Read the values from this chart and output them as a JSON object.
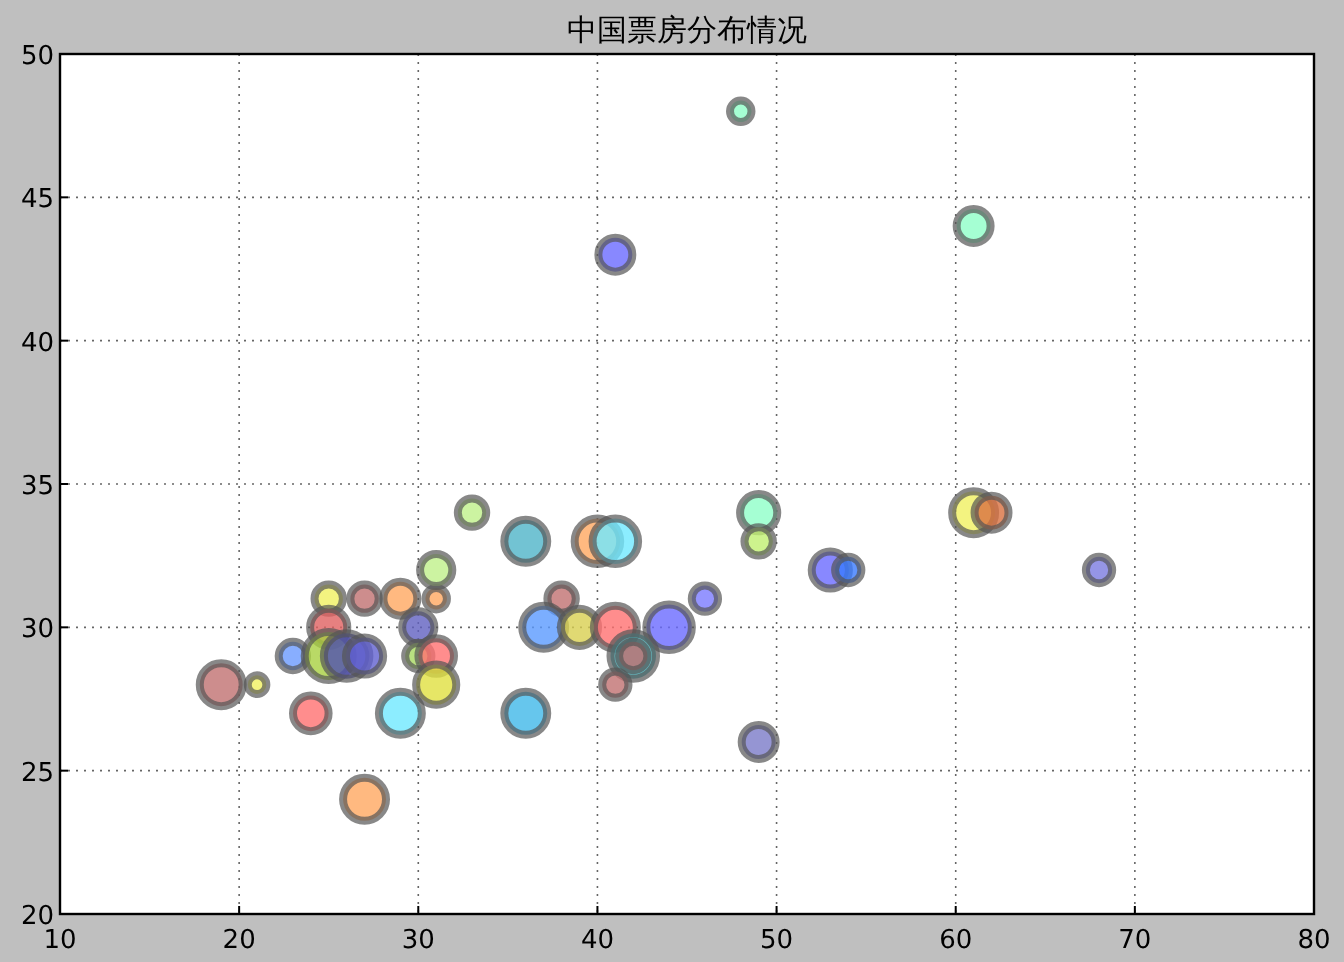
{
  "chart_data": {
    "type": "bubble",
    "title": "中国票房分布情况",
    "x": [
      48,
      61,
      41,
      33,
      36,
      40,
      41,
      49,
      49,
      53,
      54,
      61,
      62,
      68,
      25,
      27,
      29,
      31,
      31,
      38,
      46,
      37,
      39,
      41,
      44,
      42,
      42,
      41,
      23,
      19,
      21,
      25,
      25,
      26,
      27,
      30,
      30,
      31,
      31,
      24,
      29,
      36,
      27,
      49
    ],
    "values": [
      48,
      44,
      43,
      34,
      33,
      33,
      33,
      34,
      33,
      32,
      32,
      34,
      34,
      32,
      31,
      31,
      31,
      31,
      32,
      31,
      31,
      30,
      30,
      30,
      30,
      29,
      29,
      28,
      29,
      28,
      28,
      30,
      29,
      29,
      29,
      30,
      29,
      29,
      28,
      27,
      27,
      27,
      24,
      26
    ],
    "sizes": [
      0.2,
      0.5,
      0.5,
      0.35,
      0.8,
      0.9,
      0.9,
      0.6,
      0.35,
      0.6,
      0.3,
      0.8,
      0.5,
      0.3,
      0.35,
      0.35,
      0.5,
      0.2,
      0.45,
      0.35,
      0.3,
      0.8,
      0.6,
      0.8,
      0.9,
      0.9,
      0.35,
      0.3,
      0.35,
      0.8,
      0.15,
      0.6,
      1,
      0.9,
      0.6,
      0.45,
      0.3,
      0.55,
      0.7,
      0.55,
      0.8,
      0.8,
      0.8,
      0.5
    ],
    "colors": [
      "#8fffc8",
      "#8fffc8",
      "#6a6aff",
      "#bff08a",
      "#4fb4c8",
      "#ffa860",
      "#6fe8ff",
      "#8fffc8",
      "#c0f070",
      "#6a6aff",
      "#3a7aff",
      "#f0f060",
      "#d87040",
      "#7a7ae0",
      "#f0f060",
      "#c07070",
      "#ffa860",
      "#ffa860",
      "#bff08a",
      "#c07070",
      "#7a7aff",
      "#5a9aff",
      "#d8d050",
      "#ff7070",
      "#6a6aff",
      "#40a8b0",
      "#c07070",
      "#c07070",
      "#6a9aff",
      "#c07070",
      "#f0f060",
      "#e06060",
      "#a8d040",
      "#5050b0",
      "#6060d0",
      "#6060c0",
      "#a8d860",
      "#ff7070",
      "#e0e040",
      "#ff7070",
      "#6fe8ff",
      "#40b8e8",
      "#ffa860",
      "#7a7ac8"
    ],
    "xlim": [
      10,
      80
    ],
    "ylim": [
      20,
      50
    ],
    "xticks": [
      10,
      20,
      30,
      40,
      50,
      60,
      70,
      80
    ],
    "yticks": [
      20,
      25,
      30,
      35,
      40,
      45,
      50
    ],
    "grid": true
  }
}
